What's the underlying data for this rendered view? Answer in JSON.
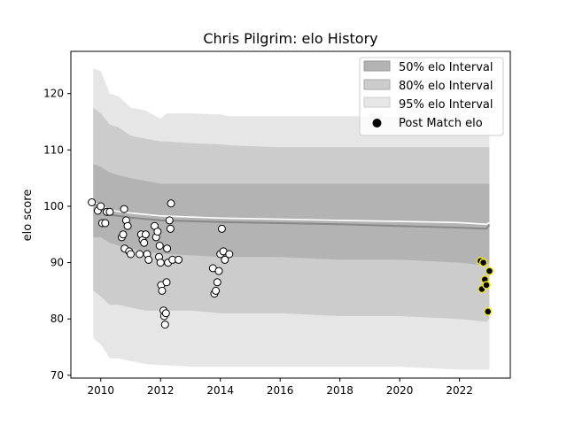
{
  "chart_data": {
    "type": "area",
    "title": "Chris Pilgrim: elo History",
    "xlabel": "",
    "ylabel": "elo score",
    "xlim": [
      2009.0,
      2023.7
    ],
    "ylim": [
      69.5,
      127.5
    ],
    "x_ticks": [
      2010,
      2012,
      2014,
      2016,
      2018,
      2020,
      2022
    ],
    "y_ticks": [
      70,
      80,
      90,
      100,
      110,
      120
    ],
    "grid": false,
    "legend_position": "top-right",
    "colors": {
      "band50": "#b3b3b3",
      "band80": "#cccccc",
      "band95": "#e6e6e6",
      "median": "#888888",
      "mean": "#ffffff",
      "point_face": "#ffffff",
      "recent_face": "#000000",
      "recent_edge": "#f0e020"
    },
    "legend": [
      {
        "label": "50% elo Interval",
        "kind": "band50"
      },
      {
        "label": "80% elo Interval",
        "kind": "band80"
      },
      {
        "label": "95% elo Interval",
        "kind": "band95"
      },
      {
        "label": "Post Match elo",
        "kind": "point"
      }
    ],
    "bands": {
      "x": [
        2009.75,
        2010.0,
        2010.3,
        2010.6,
        2011.0,
        2011.5,
        2012.0,
        2012.2,
        2013.0,
        2014.0,
        2014.3,
        2016.0,
        2018.0,
        2020.0,
        2022.0,
        2022.9,
        2023.0
      ],
      "p95_hi": [
        124.5,
        124.0,
        120.0,
        119.5,
        117.5,
        117.0,
        115.5,
        116.5,
        116.5,
        116.3,
        116.0,
        116.0,
        116.0,
        116.0,
        116.0,
        116.0,
        116.0
      ],
      "p80_hi": [
        117.5,
        116.5,
        114.5,
        114.0,
        112.5,
        112.0,
        111.5,
        111.5,
        111.2,
        111.0,
        110.8,
        110.5,
        110.5,
        110.5,
        110.5,
        110.5,
        110.5
      ],
      "p50_hi": [
        107.5,
        107.0,
        106.0,
        105.5,
        105.0,
        104.5,
        104.0,
        104.0,
        104.0,
        104.0,
        104.0,
        104.0,
        104.0,
        104.0,
        104.0,
        104.0,
        104.0
      ],
      "p50_lo": [
        94.5,
        94.5,
        93.5,
        93.0,
        92.5,
        92.0,
        91.5,
        91.5,
        91.3,
        91.0,
        91.0,
        91.0,
        90.5,
        90.5,
        90.0,
        89.5,
        90.0
      ],
      "p80_lo": [
        85.0,
        84.0,
        82.5,
        82.5,
        82.0,
        81.5,
        81.5,
        81.5,
        81.5,
        81.0,
        81.0,
        81.0,
        80.5,
        80.5,
        80.0,
        79.5,
        80.0
      ],
      "p95_lo": [
        76.5,
        75.5,
        73.0,
        73.0,
        72.5,
        72.0,
        71.8,
        71.8,
        71.5,
        71.5,
        71.5,
        71.5,
        71.5,
        71.5,
        71.0,
        71.0,
        71.0
      ]
    },
    "median_line": {
      "x": [
        2009.75,
        2010.0,
        2010.3,
        2011.0,
        2012.0,
        2014.0,
        2016.0,
        2018.0,
        2020.0,
        2022.0,
        2022.9,
        2023.0
      ],
      "y": [
        100.5,
        99.8,
        98.5,
        98.0,
        97.5,
        97.2,
        97.0,
        96.8,
        96.5,
        96.2,
        96.0,
        96.7
      ]
    },
    "mean_line": {
      "x": [
        2009.75,
        2010.0,
        2010.3,
        2011.0,
        2012.0,
        2014.0,
        2016.0,
        2018.0,
        2020.0,
        2022.0,
        2022.9,
        2023.0
      ],
      "y": [
        100.7,
        100.2,
        99.3,
        98.8,
        98.3,
        97.9,
        97.7,
        97.5,
        97.3,
        97.1,
        96.8,
        97.1
      ]
    },
    "points": [
      {
        "x": 2009.7,
        "y": 100.7
      },
      {
        "x": 2009.9,
        "y": 99.2
      },
      {
        "x": 2010.0,
        "y": 100.0
      },
      {
        "x": 2010.05,
        "y": 97.0
      },
      {
        "x": 2010.15,
        "y": 97.0
      },
      {
        "x": 2010.2,
        "y": 99.0
      },
      {
        "x": 2010.3,
        "y": 99.0
      },
      {
        "x": 2010.7,
        "y": 94.5
      },
      {
        "x": 2010.75,
        "y": 95.0
      },
      {
        "x": 2010.78,
        "y": 99.5
      },
      {
        "x": 2010.8,
        "y": 92.5
      },
      {
        "x": 2010.85,
        "y": 97.5
      },
      {
        "x": 2010.9,
        "y": 96.5
      },
      {
        "x": 2010.95,
        "y": 92.0
      },
      {
        "x": 2011.0,
        "y": 91.5
      },
      {
        "x": 2011.3,
        "y": 91.5
      },
      {
        "x": 2011.35,
        "y": 95.0
      },
      {
        "x": 2011.4,
        "y": 94.0
      },
      {
        "x": 2011.45,
        "y": 93.5
      },
      {
        "x": 2011.5,
        "y": 95.0
      },
      {
        "x": 2011.55,
        "y": 91.5
      },
      {
        "x": 2011.6,
        "y": 90.5
      },
      {
        "x": 2011.8,
        "y": 96.5
      },
      {
        "x": 2011.85,
        "y": 94.5
      },
      {
        "x": 2011.9,
        "y": 95.5
      },
      {
        "x": 2011.95,
        "y": 91.0
      },
      {
        "x": 2011.97,
        "y": 93.0
      },
      {
        "x": 2012.0,
        "y": 90.0
      },
      {
        "x": 2012.02,
        "y": 86.0
      },
      {
        "x": 2012.05,
        "y": 85.0
      },
      {
        "x": 2012.1,
        "y": 81.5
      },
      {
        "x": 2012.12,
        "y": 80.5
      },
      {
        "x": 2012.15,
        "y": 79.0
      },
      {
        "x": 2012.18,
        "y": 81.0
      },
      {
        "x": 2012.2,
        "y": 86.5
      },
      {
        "x": 2012.22,
        "y": 92.5
      },
      {
        "x": 2012.25,
        "y": 90.0
      },
      {
        "x": 2012.3,
        "y": 97.5
      },
      {
        "x": 2012.33,
        "y": 96.0
      },
      {
        "x": 2012.35,
        "y": 100.5
      },
      {
        "x": 2012.4,
        "y": 90.5
      },
      {
        "x": 2012.6,
        "y": 90.5
      },
      {
        "x": 2013.75,
        "y": 89.0
      },
      {
        "x": 2013.8,
        "y": 84.5
      },
      {
        "x": 2013.85,
        "y": 85.0
      },
      {
        "x": 2013.9,
        "y": 86.5
      },
      {
        "x": 2013.95,
        "y": 88.5
      },
      {
        "x": 2014.0,
        "y": 91.5
      },
      {
        "x": 2014.05,
        "y": 96.0
      },
      {
        "x": 2014.1,
        "y": 92.0
      },
      {
        "x": 2014.15,
        "y": 90.5
      },
      {
        "x": 2014.3,
        "y": 91.5
      }
    ],
    "recent_points": [
      {
        "x": 2022.7,
        "y": 90.3
      },
      {
        "x": 2022.75,
        "y": 85.3
      },
      {
        "x": 2022.8,
        "y": 90.0
      },
      {
        "x": 2022.85,
        "y": 87.0
      },
      {
        "x": 2022.9,
        "y": 86.0
      },
      {
        "x": 2022.95,
        "y": 81.3
      },
      {
        "x": 2023.0,
        "y": 88.5
      }
    ]
  }
}
